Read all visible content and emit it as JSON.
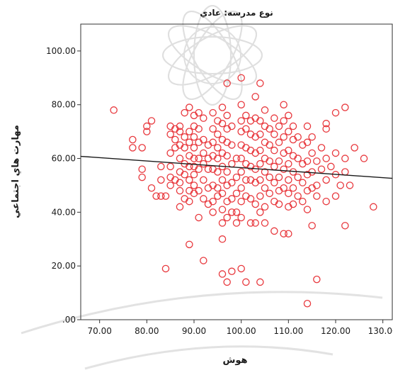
{
  "chart_data": {
    "type": "scatter",
    "title": "نوع مدرسه: عادي",
    "xlabel": "هوش",
    "ylabel": "مهارت هاي اجتماعي",
    "xlim": [
      66,
      132
    ],
    "ylim": [
      0,
      110
    ],
    "xticks": [
      70,
      80,
      90,
      100,
      110,
      120,
      130
    ],
    "yticks": [
      0,
      20,
      40,
      60,
      80,
      100
    ],
    "xtick_labels": [
      "70.00",
      "80.00",
      "90.00",
      "100.00",
      "110.00",
      "120.00",
      "130.00"
    ],
    "ytick_labels": [
      ".00",
      "20.00",
      "40.00",
      "60.00",
      "80.00",
      "100.00"
    ],
    "grid": false,
    "marker_color": "#e8383d",
    "fit_line": {
      "x": [
        66,
        132
      ],
      "y": [
        60.8,
        52.6
      ],
      "color": "#1a1a1a"
    },
    "points": [
      [
        73,
        78
      ],
      [
        77,
        67
      ],
      [
        77,
        64
      ],
      [
        79,
        64
      ],
      [
        79,
        56
      ],
      [
        79,
        53
      ],
      [
        80,
        72
      ],
      [
        80,
        70
      ],
      [
        81,
        74
      ],
      [
        81,
        49
      ],
      [
        82,
        46
      ],
      [
        83,
        46
      ],
      [
        83,
        57
      ],
      [
        83,
        52
      ],
      [
        84,
        46
      ],
      [
        84,
        19
      ],
      [
        85,
        72
      ],
      [
        85,
        69
      ],
      [
        85,
        62
      ],
      [
        85,
        57
      ],
      [
        85,
        53
      ],
      [
        85,
        50
      ],
      [
        86,
        71
      ],
      [
        86,
        67
      ],
      [
        86,
        64
      ],
      [
        86,
        52
      ],
      [
        87,
        72
      ],
      [
        87,
        70
      ],
      [
        87,
        65
      ],
      [
        87,
        60
      ],
      [
        87,
        55
      ],
      [
        87,
        51
      ],
      [
        87,
        48
      ],
      [
        87,
        42
      ],
      [
        88,
        77
      ],
      [
        88,
        68
      ],
      [
        88,
        64
      ],
      [
        88,
        58
      ],
      [
        88,
        54
      ],
      [
        88,
        45
      ],
      [
        89,
        79
      ],
      [
        89,
        70
      ],
      [
        89,
        66
      ],
      [
        89,
        61
      ],
      [
        89,
        57
      ],
      [
        89,
        52
      ],
      [
        89,
        48
      ],
      [
        89,
        44
      ],
      [
        89,
        28
      ],
      [
        90,
        76
      ],
      [
        90,
        72
      ],
      [
        90,
        68
      ],
      [
        90,
        64
      ],
      [
        90,
        60
      ],
      [
        90,
        57
      ],
      [
        90,
        54
      ],
      [
        90,
        50
      ],
      [
        90,
        47
      ],
      [
        91,
        77
      ],
      [
        91,
        71
      ],
      [
        91,
        66
      ],
      [
        91,
        60
      ],
      [
        91,
        56
      ],
      [
        91,
        48
      ],
      [
        91,
        38
      ],
      [
        92,
        75
      ],
      [
        92,
        67
      ],
      [
        92,
        62
      ],
      [
        92,
        58
      ],
      [
        92,
        52
      ],
      [
        92,
        45
      ],
      [
        92,
        22
      ],
      [
        93,
        65
      ],
      [
        93,
        60
      ],
      [
        93,
        56
      ],
      [
        93,
        49
      ],
      [
        93,
        43
      ],
      [
        94,
        77
      ],
      [
        94,
        71
      ],
      [
        94,
        66
      ],
      [
        94,
        61
      ],
      [
        94,
        56
      ],
      [
        94,
        50
      ],
      [
        94,
        44
      ],
      [
        94,
        40
      ],
      [
        95,
        74
      ],
      [
        95,
        69
      ],
      [
        95,
        64
      ],
      [
        95,
        60
      ],
      [
        95,
        55
      ],
      [
        95,
        49
      ],
      [
        95,
        46
      ],
      [
        96,
        79
      ],
      [
        96,
        73
      ],
      [
        96,
        67
      ],
      [
        96,
        62
      ],
      [
        96,
        57
      ],
      [
        96,
        52
      ],
      [
        96,
        47
      ],
      [
        96,
        41
      ],
      [
        96,
        36
      ],
      [
        96,
        30
      ],
      [
        96,
        17
      ],
      [
        97,
        88
      ],
      [
        97,
        76
      ],
      [
        97,
        71
      ],
      [
        97,
        66
      ],
      [
        97,
        61
      ],
      [
        97,
        55
      ],
      [
        97,
        50
      ],
      [
        97,
        44
      ],
      [
        97,
        38
      ],
      [
        97,
        14
      ],
      [
        98,
        72
      ],
      [
        98,
        65
      ],
      [
        98,
        58
      ],
      [
        98,
        51
      ],
      [
        98,
        45
      ],
      [
        98,
        40
      ],
      [
        98,
        18
      ],
      [
        99,
        60
      ],
      [
        99,
        53
      ],
      [
        99,
        47
      ],
      [
        99,
        40
      ],
      [
        99,
        36
      ],
      [
        100,
        90
      ],
      [
        100,
        80
      ],
      [
        100,
        74
      ],
      [
        100,
        70
      ],
      [
        100,
        65
      ],
      [
        100,
        60
      ],
      [
        100,
        55
      ],
      [
        100,
        49
      ],
      [
        100,
        44
      ],
      [
        100,
        38
      ],
      [
        100,
        19
      ],
      [
        101,
        76
      ],
      [
        101,
        71
      ],
      [
        101,
        64
      ],
      [
        101,
        58
      ],
      [
        101,
        52
      ],
      [
        101,
        46
      ],
      [
        101,
        14
      ],
      [
        102,
        74
      ],
      [
        102,
        69
      ],
      [
        102,
        63
      ],
      [
        102,
        57
      ],
      [
        102,
        52
      ],
      [
        102,
        45
      ],
      [
        102,
        36
      ],
      [
        103,
        83
      ],
      [
        103,
        75
      ],
      [
        103,
        68
      ],
      [
        103,
        62
      ],
      [
        103,
        56
      ],
      [
        103,
        51
      ],
      [
        103,
        43
      ],
      [
        103,
        36
      ],
      [
        104,
        88
      ],
      [
        104,
        74
      ],
      [
        104,
        69
      ],
      [
        104,
        63
      ],
      [
        104,
        58
      ],
      [
        104,
        52
      ],
      [
        104,
        46
      ],
      [
        104,
        40
      ],
      [
        104,
        14
      ],
      [
        105,
        78
      ],
      [
        105,
        72
      ],
      [
        105,
        66
      ],
      [
        105,
        60
      ],
      [
        105,
        55
      ],
      [
        105,
        49
      ],
      [
        105,
        42
      ],
      [
        105,
        36
      ],
      [
        106,
        71
      ],
      [
        106,
        65
      ],
      [
        106,
        59
      ],
      [
        106,
        53
      ],
      [
        106,
        47
      ],
      [
        107,
        75
      ],
      [
        107,
        69
      ],
      [
        107,
        63
      ],
      [
        107,
        57
      ],
      [
        107,
        51
      ],
      [
        107,
        44
      ],
      [
        107,
        33
      ],
      [
        108,
        72
      ],
      [
        108,
        66
      ],
      [
        108,
        59
      ],
      [
        108,
        53
      ],
      [
        108,
        48
      ],
      [
        108,
        43
      ],
      [
        109,
        80
      ],
      [
        109,
        74
      ],
      [
        109,
        68
      ],
      [
        109,
        62
      ],
      [
        109,
        56
      ],
      [
        109,
        49
      ],
      [
        109,
        32
      ],
      [
        110,
        76
      ],
      [
        110,
        70
      ],
      [
        110,
        63
      ],
      [
        110,
        58
      ],
      [
        110,
        52
      ],
      [
        110,
        47
      ],
      [
        110,
        42
      ],
      [
        110,
        32
      ],
      [
        111,
        72
      ],
      [
        111,
        67
      ],
      [
        111,
        61
      ],
      [
        111,
        55
      ],
      [
        111,
        49
      ],
      [
        111,
        43
      ],
      [
        112,
        68
      ],
      [
        112,
        60
      ],
      [
        112,
        53
      ],
      [
        112,
        46
      ],
      [
        113,
        65
      ],
      [
        113,
        58
      ],
      [
        113,
        51
      ],
      [
        113,
        44
      ],
      [
        114,
        72
      ],
      [
        114,
        66
      ],
      [
        114,
        59
      ],
      [
        114,
        54
      ],
      [
        114,
        48
      ],
      [
        114,
        41
      ],
      [
        114,
        6
      ],
      [
        115,
        68
      ],
      [
        115,
        62
      ],
      [
        115,
        55
      ],
      [
        115,
        49
      ],
      [
        115,
        35
      ],
      [
        116,
        59
      ],
      [
        116,
        50
      ],
      [
        116,
        46
      ],
      [
        116,
        15
      ],
      [
        117,
        64
      ],
      [
        117,
        56
      ],
      [
        118,
        73
      ],
      [
        118,
        71
      ],
      [
        118,
        60
      ],
      [
        118,
        52
      ],
      [
        118,
        44
      ],
      [
        119,
        57
      ],
      [
        120,
        77
      ],
      [
        120,
        62
      ],
      [
        120,
        54
      ],
      [
        120,
        46
      ],
      [
        121,
        50
      ],
      [
        122,
        79
      ],
      [
        122,
        60
      ],
      [
        122,
        55
      ],
      [
        122,
        35
      ],
      [
        123,
        50
      ],
      [
        124,
        64
      ],
      [
        126,
        60
      ],
      [
        128,
        42
      ]
    ]
  }
}
